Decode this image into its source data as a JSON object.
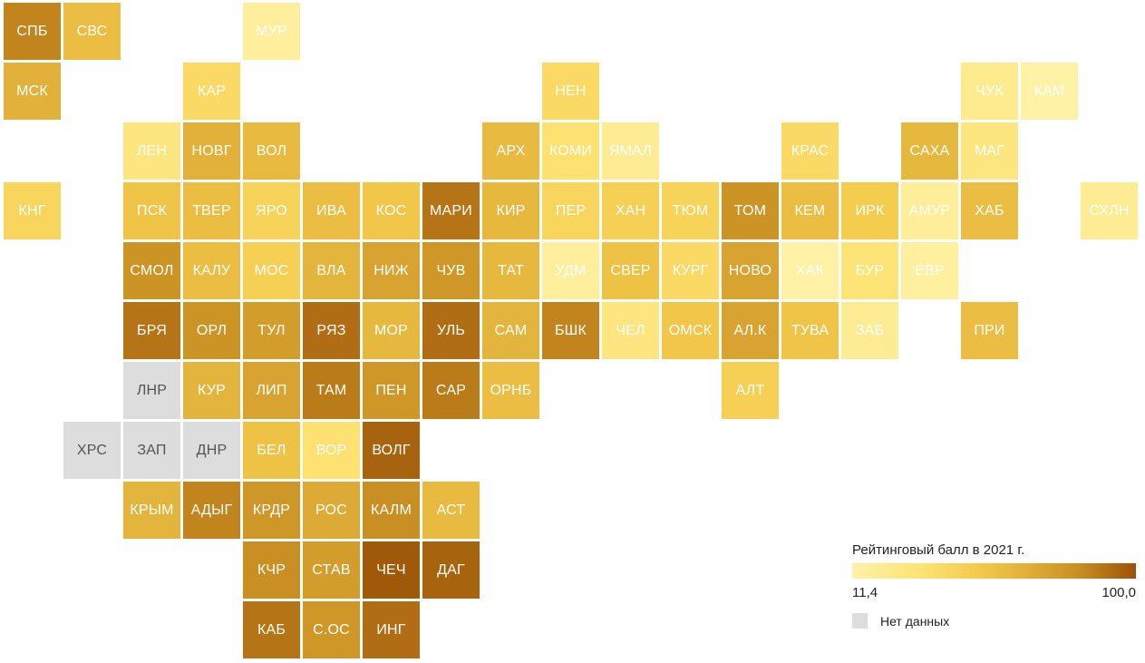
{
  "chart_data": {
    "type": "tile-map",
    "scale": {
      "min": 11.4,
      "max": 100.0,
      "min_label": "11,4",
      "max_label": "100,0",
      "colors": [
        "#fff2a8",
        "#fde373",
        "#f3c94a",
        "#e2b23a",
        "#c98e22",
        "#9b5206"
      ]
    },
    "nodata_color": "#dddddd",
    "regions": [
      {
        "code": "СПБ",
        "col": 0,
        "row": 0,
        "value": 85
      },
      {
        "code": "СВС",
        "col": 1,
        "row": 0,
        "value": 55
      },
      {
        "code": "МУР",
        "col": 4,
        "row": 0,
        "value": 15
      },
      {
        "code": "МСК",
        "col": 0,
        "row": 1,
        "value": 65
      },
      {
        "code": "КАР",
        "col": 3,
        "row": 1,
        "value": 35
      },
      {
        "code": "НЕН",
        "col": 9,
        "row": 1,
        "value": 35
      },
      {
        "code": "ЧУК",
        "col": 16,
        "row": 1,
        "value": 20
      },
      {
        "code": "КАМ",
        "col": 17,
        "row": 1,
        "value": 12
      },
      {
        "code": "ЛЕН",
        "col": 2,
        "row": 2,
        "value": 25
      },
      {
        "code": "НОВГ",
        "col": 3,
        "row": 2,
        "value": 65
      },
      {
        "code": "ВОЛ",
        "col": 4,
        "row": 2,
        "value": 58
      },
      {
        "code": "АРХ",
        "col": 8,
        "row": 2,
        "value": 58
      },
      {
        "code": "КОМИ",
        "col": 9,
        "row": 2,
        "value": 30
      },
      {
        "code": "ЯМАЛ",
        "col": 10,
        "row": 2,
        "value": 18
      },
      {
        "code": "КРАС",
        "col": 13,
        "row": 2,
        "value": 35
      },
      {
        "code": "САХА",
        "col": 15,
        "row": 2,
        "value": 60
      },
      {
        "code": "МАГ",
        "col": 16,
        "row": 2,
        "value": 25
      },
      {
        "code": "КНГ",
        "col": 0,
        "row": 3,
        "value": 38
      },
      {
        "code": "ПСК",
        "col": 2,
        "row": 3,
        "value": 50
      },
      {
        "code": "ТВЕР",
        "col": 3,
        "row": 3,
        "value": 55
      },
      {
        "code": "ЯРО",
        "col": 4,
        "row": 3,
        "value": 40
      },
      {
        "code": "ИВА",
        "col": 5,
        "row": 3,
        "value": 55
      },
      {
        "code": "КОС",
        "col": 6,
        "row": 3,
        "value": 48
      },
      {
        "code": "МАРИ",
        "col": 7,
        "row": 3,
        "value": 90
      },
      {
        "code": "КИР",
        "col": 8,
        "row": 3,
        "value": 60
      },
      {
        "code": "ПЕР",
        "col": 9,
        "row": 3,
        "value": 38
      },
      {
        "code": "ХАН",
        "col": 10,
        "row": 3,
        "value": 42
      },
      {
        "code": "ТЮМ",
        "col": 11,
        "row": 3,
        "value": 40
      },
      {
        "code": "ТОМ",
        "col": 12,
        "row": 3,
        "value": 80
      },
      {
        "code": "КЕМ",
        "col": 13,
        "row": 3,
        "value": 55
      },
      {
        "code": "ИРК",
        "col": 14,
        "row": 3,
        "value": 45
      },
      {
        "code": "АМУР",
        "col": 15,
        "row": 3,
        "value": 16
      },
      {
        "code": "ХАБ",
        "col": 16,
        "row": 3,
        "value": 55
      },
      {
        "code": "СХЛН",
        "col": 18,
        "row": 3,
        "value": 18
      },
      {
        "code": "СМОЛ",
        "col": 2,
        "row": 4,
        "value": 80
      },
      {
        "code": "КАЛУ",
        "col": 3,
        "row": 4,
        "value": 55
      },
      {
        "code": "МОС",
        "col": 4,
        "row": 4,
        "value": 42
      },
      {
        "code": "ВЛА",
        "col": 5,
        "row": 4,
        "value": 62
      },
      {
        "code": "НИЖ",
        "col": 6,
        "row": 4,
        "value": 72
      },
      {
        "code": "ЧУВ",
        "col": 7,
        "row": 4,
        "value": 78
      },
      {
        "code": "ТАТ",
        "col": 8,
        "row": 4,
        "value": 60
      },
      {
        "code": "УДМ",
        "col": 9,
        "row": 4,
        "value": 15
      },
      {
        "code": "СВЕР",
        "col": 10,
        "row": 4,
        "value": 52
      },
      {
        "code": "КУРГ",
        "col": 11,
        "row": 4,
        "value": 35
      },
      {
        "code": "НОВО",
        "col": 12,
        "row": 4,
        "value": 72
      },
      {
        "code": "ХАК",
        "col": 13,
        "row": 4,
        "value": 12
      },
      {
        "code": "БУР",
        "col": 14,
        "row": 4,
        "value": 28
      },
      {
        "code": "ЕВР",
        "col": 15,
        "row": 4,
        "value": 14
      },
      {
        "code": "БРЯ",
        "col": 2,
        "row": 5,
        "value": 90
      },
      {
        "code": "ОРЛ",
        "col": 3,
        "row": 5,
        "value": 80
      },
      {
        "code": "ТУЛ",
        "col": 4,
        "row": 5,
        "value": 75
      },
      {
        "code": "РЯЗ",
        "col": 5,
        "row": 5,
        "value": 92
      },
      {
        "code": "МОР",
        "col": 6,
        "row": 5,
        "value": 60
      },
      {
        "code": "УЛЬ",
        "col": 7,
        "row": 5,
        "value": 92
      },
      {
        "code": "САМ",
        "col": 8,
        "row": 5,
        "value": 62
      },
      {
        "code": "БШК",
        "col": 9,
        "row": 5,
        "value": 85
      },
      {
        "code": "ЧЕЛ",
        "col": 10,
        "row": 5,
        "value": 25
      },
      {
        "code": "ОМСК",
        "col": 11,
        "row": 5,
        "value": 48
      },
      {
        "code": "АЛ.К",
        "col": 12,
        "row": 5,
        "value": 72
      },
      {
        "code": "ТУВА",
        "col": 13,
        "row": 5,
        "value": 50
      },
      {
        "code": "ЗАБ",
        "col": 14,
        "row": 5,
        "value": 18
      },
      {
        "code": "ПРИ",
        "col": 16,
        "row": 5,
        "value": 55
      },
      {
        "code": "ЛНР",
        "col": 2,
        "row": 6,
        "value": null
      },
      {
        "code": "КУР",
        "col": 3,
        "row": 6,
        "value": 62
      },
      {
        "code": "ЛИП",
        "col": 4,
        "row": 6,
        "value": 72
      },
      {
        "code": "ТАМ",
        "col": 5,
        "row": 6,
        "value": 88
      },
      {
        "code": "ПЕН",
        "col": 6,
        "row": 6,
        "value": 78
      },
      {
        "code": "САР",
        "col": 7,
        "row": 6,
        "value": 88
      },
      {
        "code": "ОРНБ",
        "col": 8,
        "row": 6,
        "value": 55
      },
      {
        "code": "АЛТ",
        "col": 12,
        "row": 6,
        "value": 42
      },
      {
        "code": "ХРС",
        "col": 1,
        "row": 7,
        "value": null
      },
      {
        "code": "ЗАП",
        "col": 2,
        "row": 7,
        "value": null
      },
      {
        "code": "ДНР",
        "col": 3,
        "row": 7,
        "value": null
      },
      {
        "code": "БЕЛ",
        "col": 4,
        "row": 7,
        "value": 52
      },
      {
        "code": "ВОР",
        "col": 5,
        "row": 7,
        "value": 30
      },
      {
        "code": "ВОЛГ",
        "col": 6,
        "row": 7,
        "value": 95
      },
      {
        "code": "КРЫМ",
        "col": 2,
        "row": 8,
        "value": 62
      },
      {
        "code": "АДЫГ",
        "col": 3,
        "row": 8,
        "value": 85
      },
      {
        "code": "КРДР",
        "col": 4,
        "row": 8,
        "value": 78
      },
      {
        "code": "РОС",
        "col": 5,
        "row": 8,
        "value": 68
      },
      {
        "code": "КАЛМ",
        "col": 6,
        "row": 8,
        "value": 82
      },
      {
        "code": "АСТ",
        "col": 7,
        "row": 8,
        "value": 58
      },
      {
        "code": "КЧР",
        "col": 4,
        "row": 9,
        "value": 82
      },
      {
        "code": "СТАВ",
        "col": 5,
        "row": 9,
        "value": 75
      },
      {
        "code": "ЧЕЧ",
        "col": 6,
        "row": 9,
        "value": 98
      },
      {
        "code": "ДАГ",
        "col": 7,
        "row": 9,
        "value": 95
      },
      {
        "code": "КАБ",
        "col": 4,
        "row": 10,
        "value": 90
      },
      {
        "code": "С.ОС",
        "col": 5,
        "row": 10,
        "value": 78
      },
      {
        "code": "ИНГ",
        "col": 6,
        "row": 10,
        "value": 92
      }
    ]
  },
  "legend": {
    "title": "Рейтинговый балл в 2021 г.",
    "min_label": "11,4",
    "max_label": "100,0",
    "nodata_label": "Нет данных"
  }
}
